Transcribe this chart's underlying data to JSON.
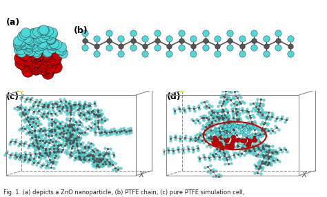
{
  "figure_width": 4.74,
  "figure_height": 2.86,
  "dpi": 100,
  "bg_color": "#ffffff",
  "panels": [
    "(a)",
    "(b)",
    "(c)",
    "(d)"
  ],
  "panel_label_fontsize": 9,
  "panel_label_color": "#000000",
  "caption_text": "Fig. 1. (a) depicts a ZnO nanoparticle, (b) PTFE chain, (c) pure PTFE simulation cell,",
  "caption_fontsize": 6,
  "cyan_color": "#4dd9d9",
  "red_color": "#cc0000",
  "dark_color": "#555555",
  "box_line_color": "#888888",
  "yellow_dot_color": "#ffff00",
  "seed_a": 42,
  "seed_b": 99,
  "seed_c": 7,
  "seed_d": 15,
  "n_red_spheres": 55,
  "n_cyan_spheres_a": 70,
  "n_ptfe_carbons": 18,
  "n_molecules_c": 55,
  "n_molecules_d": 45
}
